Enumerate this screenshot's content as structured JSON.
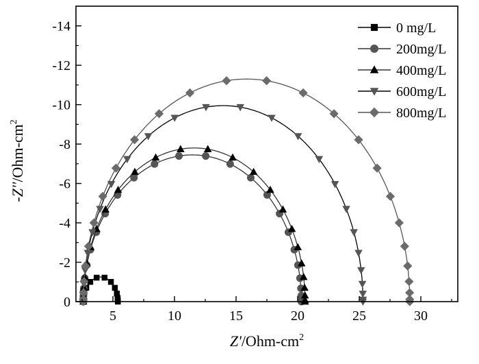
{
  "chart_data": {
    "type": "scatter",
    "title": "",
    "xlabel": {
      "italic": "Z'",
      "rest": "/Ohm-cm",
      "sup": "2"
    },
    "ylabel": {
      "prefix": "-",
      "italic": "Z''",
      "rest": "/Ohm-cm",
      "sup": "2"
    },
    "xlim": [
      2,
      33
    ],
    "ylim": [
      0,
      -15
    ],
    "y_inverted": true,
    "x_ticks": [
      5,
      10,
      15,
      20,
      25,
      30
    ],
    "x_tick_labels": [
      "5",
      "10",
      "15",
      "20",
      "25",
      "30"
    ],
    "y_ticks": [
      0,
      -2,
      -4,
      -6,
      -8,
      -10,
      -12,
      -14
    ],
    "y_tick_labels": [
      "0",
      "-2",
      "-4",
      "-6",
      "-8",
      "-10",
      "-12",
      "-14"
    ],
    "legend_position": "top-right",
    "grid": false,
    "series": [
      {
        "name": "0 mg/L",
        "marker": "square",
        "color": "#000000",
        "line_color": "#000000",
        "arc": {
          "x_start": 2.6,
          "x_end": 5.4,
          "radius_y": 1.25
        }
      },
      {
        "name": "200mg/L",
        "marker": "circle",
        "color": "#555555",
        "line_color": "#333333",
        "arc": {
          "x_start": 2.6,
          "x_end": 20.3,
          "radius_y": 7.45
        }
      },
      {
        "name": "400mg/L",
        "marker": "triangle-up",
        "color": "#000000",
        "line_color": "#333333",
        "arc": {
          "x_start": 2.6,
          "x_end": 20.6,
          "radius_y": 7.8
        }
      },
      {
        "name": "600mg/L",
        "marker": "triangle-down",
        "color": "#555555",
        "line_color": "#000000",
        "arc": {
          "x_start": 2.6,
          "x_end": 25.3,
          "radius_y": 9.95
        }
      },
      {
        "name": "800mg/L",
        "marker": "diamond",
        "color": "#6b6b6b",
        "line_color": "#555555",
        "arc": {
          "x_start": 2.6,
          "x_end": 29.1,
          "radius_y": 11.3
        }
      }
    ]
  }
}
